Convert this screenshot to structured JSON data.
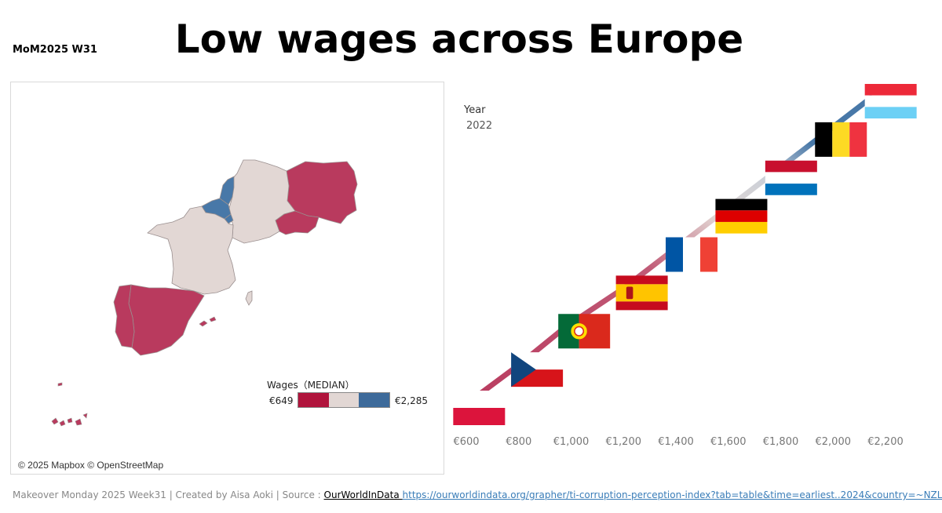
{
  "header": {
    "tag": "MoM2025 W31",
    "title": "Low wages across Europe"
  },
  "map": {
    "attribution": "© 2025 Mapbox © OpenStreetMap",
    "legend": {
      "title": "Wages（MEDIAN）",
      "min_label": "€649",
      "max_label": "€2,285",
      "colors": [
        "#b0143c",
        "#e2d7d4",
        "#3d6a9a"
      ]
    },
    "colors": {
      "low": "#b93a5e",
      "mid": "#e2d7d4",
      "high": "#4878a8",
      "border": "#9a8f8f"
    }
  },
  "chart": {
    "year_label": "Year",
    "year_value": "2022",
    "x_ticks": [
      "€600",
      "€800",
      "€1,000",
      "€1,200",
      "€1,400",
      "€1,600",
      "€1,800",
      "€2,000",
      "€2,200"
    ]
  },
  "chart_data": {
    "type": "line",
    "title": "Low wages across Europe",
    "xlabel": "",
    "ylabel": "",
    "xlim": [
      580,
      2250
    ],
    "series": [
      {
        "name": "Wages (MEDIAN)",
        "points": [
          {
            "country": "Poland",
            "flag": "poland",
            "wage": 649
          },
          {
            "country": "Czechia",
            "flag": "czechia",
            "wage": 870
          },
          {
            "country": "Portugal",
            "flag": "portugal",
            "wage": 1050
          },
          {
            "country": "Spain",
            "flag": "spain",
            "wage": 1270
          },
          {
            "country": "France",
            "flag": "france",
            "wage": 1460
          },
          {
            "country": "Germany",
            "flag": "germany",
            "wage": 1650
          },
          {
            "country": "Netherlands",
            "flag": "netherlands",
            "wage": 1840
          },
          {
            "country": "Belgium",
            "flag": "belgium",
            "wage": 2030
          },
          {
            "country": "Luxembourg",
            "flag": "luxembourg",
            "wage": 2220
          }
        ]
      }
    ]
  },
  "footer": {
    "credit": "Makeover Monday 2025 Week31 | Created by Aisa Aoki | Source : ",
    "source_label": "OurWorldInData ",
    "source_url": "https://ourworldindata.org/grapher/ti-corruption-perception-index?tab=table&time=earliest..2024&country=~NZL"
  }
}
